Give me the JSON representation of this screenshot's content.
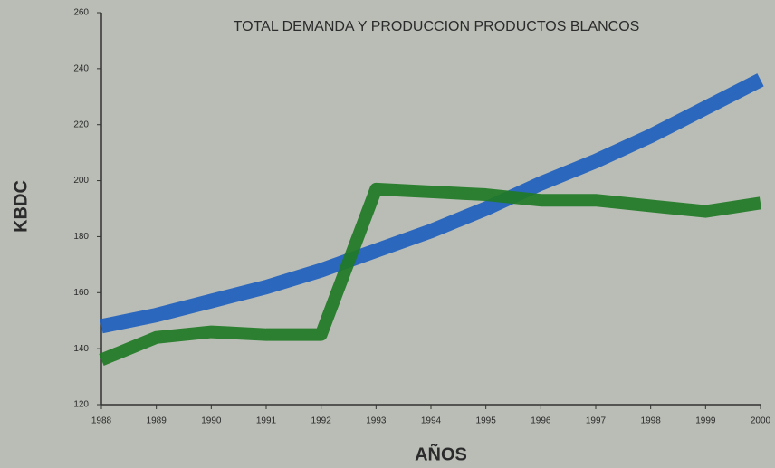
{
  "chart_data": {
    "type": "line",
    "title": "TOTAL DEMANDA Y PRODUCCION PRODUCTOS BLANCOS",
    "x_label": "AÑOS",
    "y_label": "KBDC",
    "x": [
      1988,
      1989,
      1990,
      1991,
      1992,
      1993,
      1994,
      1995,
      1996,
      1997,
      1998,
      1999,
      2000
    ],
    "series": [
      {
        "color": "#1f5fbf",
        "values": [
          148,
          152,
          157,
          162,
          168,
          175,
          182,
          190,
          199,
          207,
          216,
          226,
          236
        ]
      },
      {
        "color": "#1f7a25",
        "values": [
          136,
          144,
          146,
          145,
          145,
          197,
          196,
          195,
          193,
          193,
          191,
          189,
          192
        ]
      }
    ],
    "xlim": [
      1988,
      2000
    ],
    "xticks": [
      1988,
      1989,
      1990,
      1991,
      1992,
      1993,
      1994,
      1995,
      1996,
      1997,
      1998,
      1999,
      2000
    ],
    "ylim": [
      120,
      260
    ],
    "yticks": [
      120,
      140,
      160,
      180,
      200,
      220,
      240,
      260
    ]
  }
}
